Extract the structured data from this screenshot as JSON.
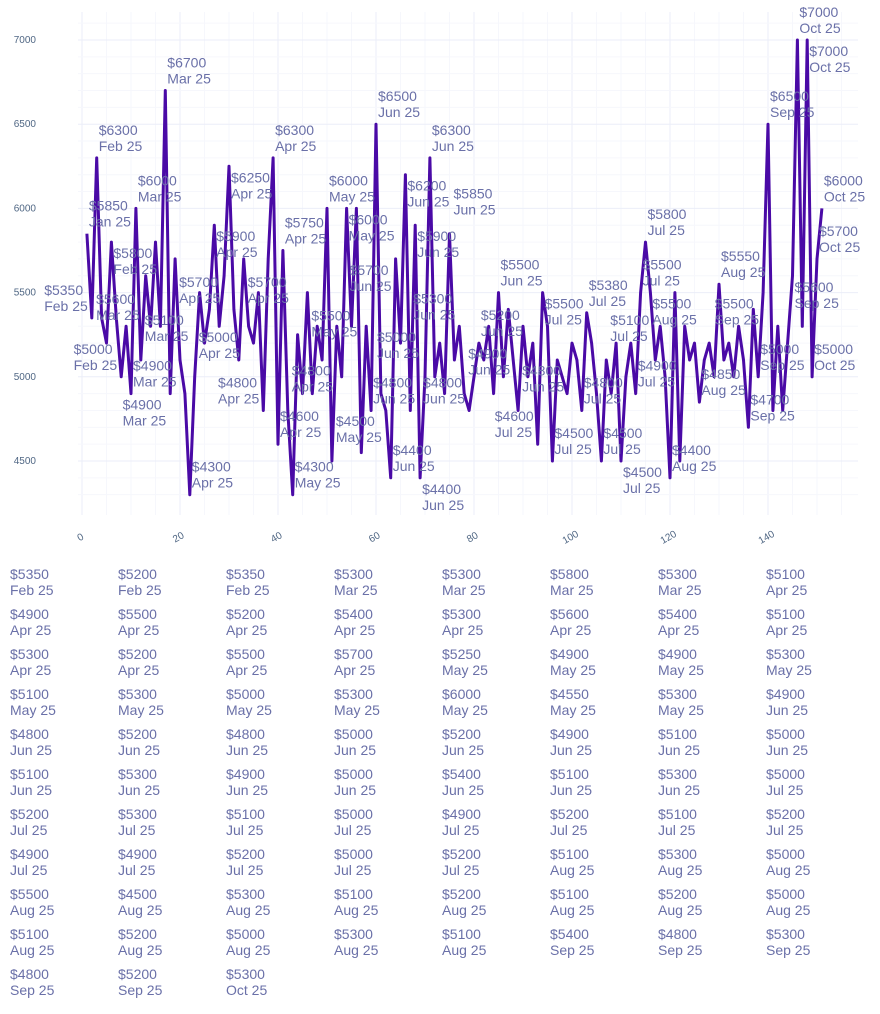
{
  "chart_data": {
    "type": "line",
    "title": "",
    "xlabel": "",
    "ylabel": "",
    "xlim": [
      -2,
      157
    ],
    "ylim": [
      4170,
      7120
    ],
    "x_ticks": [
      0,
      20,
      40,
      60,
      80,
      100,
      120,
      140
    ],
    "y_ticks": [
      4500,
      5000,
      5500,
      6000,
      6500,
      7000
    ],
    "grid": true,
    "line_color": "#4a0aa6",
    "label_color": "#6a70a8",
    "value_prefix": "$",
    "values": [
      5850,
      5350,
      6300,
      5350,
      5200,
      5800,
      5350,
      5000,
      5300,
      4900,
      6000,
      5100,
      5600,
      5300,
      5800,
      5300,
      6700,
      4900,
      5700,
      5100,
      4900,
      4300,
      5000,
      5500,
      5200,
      5400,
      5900,
      5300,
      5600,
      6250,
      5400,
      5100,
      5700,
      5300,
      5200,
      5500,
      4800,
      5700,
      6300,
      4600,
      5750,
      4800,
      4300,
      5250,
      4900,
      5500,
      4900,
      5300,
      5100,
      6000,
      4500,
      5300,
      5000,
      6000,
      5300,
      6000,
      4550,
      5300,
      4800,
      6500,
      4900,
      4800,
      4400,
      5700,
      5200,
      6200,
      4800,
      5900,
      4400,
      5000,
      6300,
      5000,
      5200,
      4900,
      5850,
      5100,
      5300,
      4900,
      4800,
      5000,
      5200,
      5100,
      5300,
      4900,
      5500,
      5000,
      5400,
      5100,
      4800,
      5300,
      5000,
      5200,
      4600,
      5500,
      5300,
      4500,
      5100,
      5000,
      4900,
      5200,
      5100,
      4800,
      5380,
      5200,
      4900,
      4500,
      5100,
      4900,
      5200,
      4500,
      5000,
      5200,
      4900,
      5500,
      5800,
      5500,
      5100,
      5300,
      5000,
      4400,
      5500,
      4500,
      5300,
      5100,
      5200,
      4850,
      5100,
      5200,
      5000,
      5550,
      5100,
      5200,
      5000,
      5300,
      5100,
      4700,
      5400,
      5000,
      5500,
      6500,
      4800,
      5300,
      4800,
      5200,
      5600,
      7000,
      5300,
      7000,
      5000,
      5700,
      6000
    ],
    "month_ranges": [
      {
        "label": "Jan 25",
        "from": 1,
        "to": 1
      },
      {
        "label": "Feb 25",
        "from": 2,
        "to": 8
      },
      {
        "label": "Mar 25",
        "from": 9,
        "to": 18
      },
      {
        "label": "Apr 25",
        "from": 19,
        "to": 42
      },
      {
        "label": "May 25",
        "from": 43,
        "to": 58
      },
      {
        "label": "Jun 25",
        "from": 59,
        "to": 90
      },
      {
        "label": "Jul 25",
        "from": 91,
        "to": 115
      },
      {
        "label": "Aug 25",
        "from": 116,
        "to": 135
      },
      {
        "label": "Sep 25",
        "from": 136,
        "to": 145
      },
      {
        "label": "Oct 25",
        "from": 146,
        "to": 151
      }
    ]
  }
}
